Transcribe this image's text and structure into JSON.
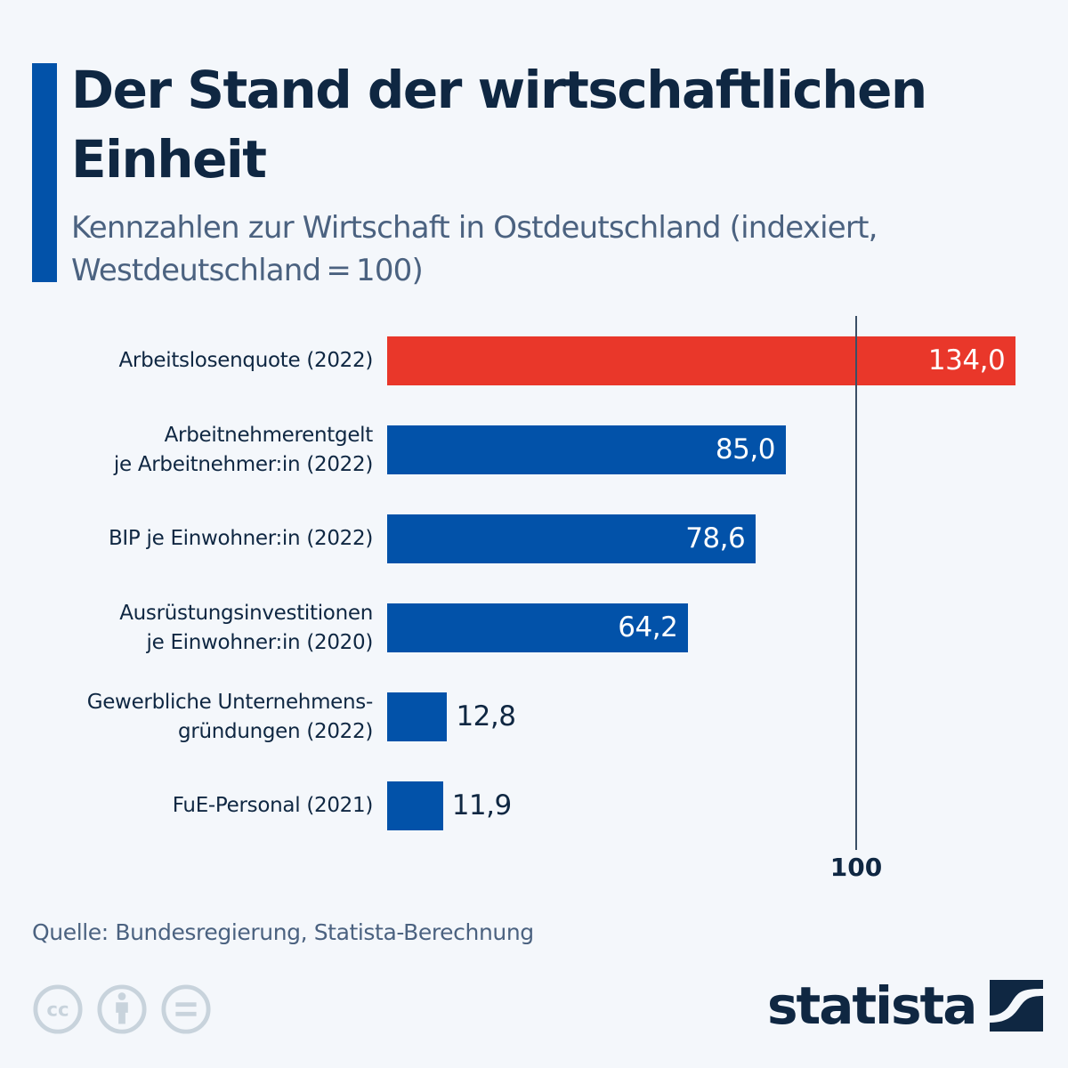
{
  "header": {
    "title": "Der Stand der wirtschaftlichen Einheit",
    "subtitle": "Kennzahlen zur Wirtschaft in Ostdeutschland (indexiert, Westdeutschland = 100)"
  },
  "colors": {
    "accent": "#0252a9",
    "bar_default": "#0252a9",
    "bar_highlight": "#e9372a",
    "text_dark": "#0f2742",
    "text_muted": "#4b6280",
    "background": "#f4f7fb"
  },
  "chart_data": {
    "type": "bar",
    "orientation": "horizontal",
    "title": "Der Stand der wirtschaftlichen Einheit",
    "subtitle": "Kennzahlen zur Wirtschaft in Ostdeutschland (indexiert, Westdeutschland = 100)",
    "categories": [
      [
        "Arbeitslosenquote (2022)"
      ],
      [
        "Arbeitnehmerentgelt",
        "je Arbeitnehmer:in (2022)"
      ],
      [
        "BIP je Einwohner:in (2022)"
      ],
      [
        "Ausrüstungsinvestitionen",
        "je Einwohner:in (2020)"
      ],
      [
        "Gewerbliche Unternehmens-",
        "gründungen (2022)"
      ],
      [
        "FuE-Personal (2021)"
      ]
    ],
    "values": [
      134.0,
      85.0,
      78.6,
      64.2,
      12.8,
      11.9
    ],
    "value_labels": [
      "134,0",
      "85,0",
      "78,6",
      "64,2",
      "12,8",
      "11,9"
    ],
    "highlight": [
      true,
      false,
      false,
      false,
      false,
      false
    ],
    "reference_line": {
      "value": 100,
      "label": "100"
    },
    "xlim": [
      0,
      134
    ],
    "xlabel": "",
    "ylabel": "",
    "grid": false,
    "legend": "none"
  },
  "footer": {
    "source": "Quelle: Bundesregierung, Statista-Berechnung",
    "license_icons": [
      "cc-icon",
      "attribution-icon",
      "no-derivatives-icon"
    ],
    "logo_text": "statista"
  }
}
